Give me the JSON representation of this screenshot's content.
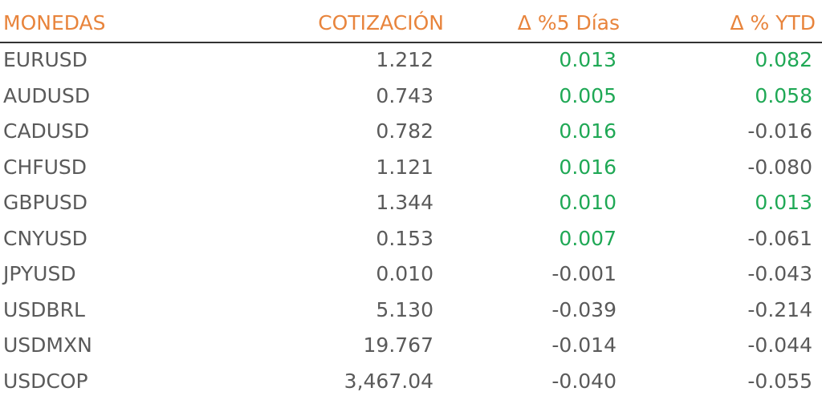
{
  "table": {
    "headers": [
      "MONEDAS",
      "COTIZACIÓN",
      "Δ %5 Días",
      "Δ % YTD"
    ],
    "rows": [
      [
        "EURUSD",
        "1.212",
        "0.013",
        "0.082"
      ],
      [
        "AUDUSD",
        "0.743",
        "0.005",
        "0.058"
      ],
      [
        "CADUSD",
        "0.782",
        "0.016",
        "-0.016"
      ],
      [
        "CHFUSD",
        "1.121",
        "0.016",
        "-0.080"
      ],
      [
        "GBPUSD",
        "1.344",
        "0.010",
        "0.013"
      ],
      [
        "CNYUSD",
        "0.153",
        "0.007",
        "-0.061"
      ],
      [
        "JPYUSD",
        "0.010",
        "-0.001",
        "-0.043"
      ],
      [
        "USDBRL",
        "5.130",
        "-0.039",
        "-0.214"
      ],
      [
        "USDMXN",
        "19.767",
        "-0.014",
        "-0.044"
      ],
      [
        "USDCOP",
        "3,467.04",
        "-0.040",
        "-0.055"
      ]
    ]
  }
}
